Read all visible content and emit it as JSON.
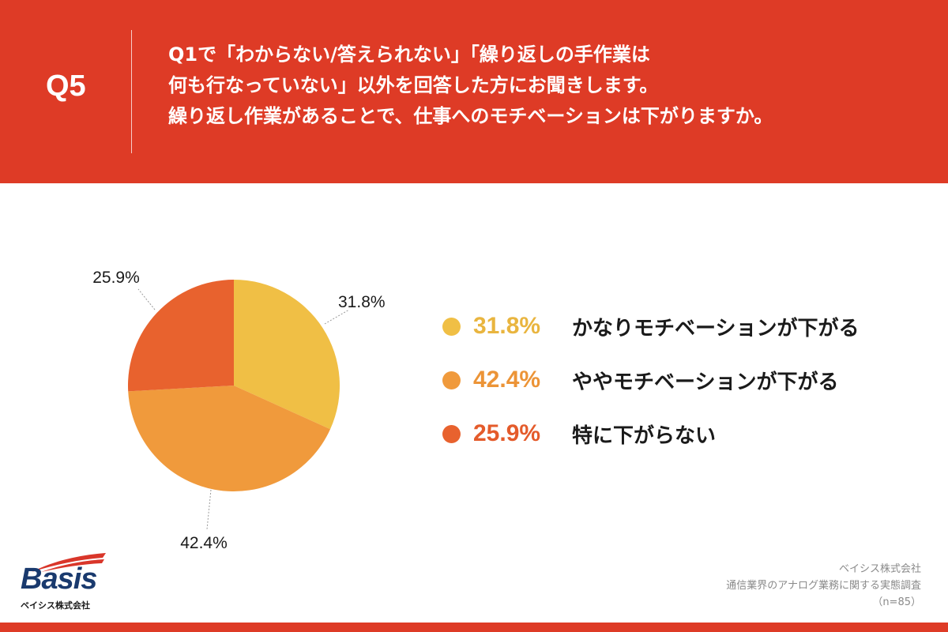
{
  "header": {
    "q_label": "Q5",
    "question_lines": [
      "Q1で「わからない/答えられない」「繰り返しの手作業は",
      "何も行なっていない」以外を回答した方にお聞きします。",
      "繰り返し作業があることで、仕事へのモチベーションは下がりますか。"
    ]
  },
  "colors": {
    "background": "#de3b26",
    "panel": "#ffffff"
  },
  "chart_data": {
    "type": "pie",
    "title": "",
    "categories": [
      "かなりモチベーションが下がる",
      "ややモチベーションが下がる",
      "特に下がらない"
    ],
    "values": [
      31.8,
      42.4,
      25.9
    ],
    "labels": [
      "31.8%",
      "42.4%",
      "25.9%"
    ],
    "colors": [
      "#f0bf45",
      "#f09a3c",
      "#e8622e"
    ],
    "pct_colors": [
      "#e9b53f",
      "#ec9437",
      "#e45b2b"
    ],
    "legend_placement": "right"
  },
  "logo": {
    "name": "Basis",
    "sub": "ベイシス株式会社"
  },
  "source": {
    "company": "ベイシス株式会社",
    "survey": "通信業界のアナログ業務に関する実態調査",
    "n": "（n=85）"
  }
}
